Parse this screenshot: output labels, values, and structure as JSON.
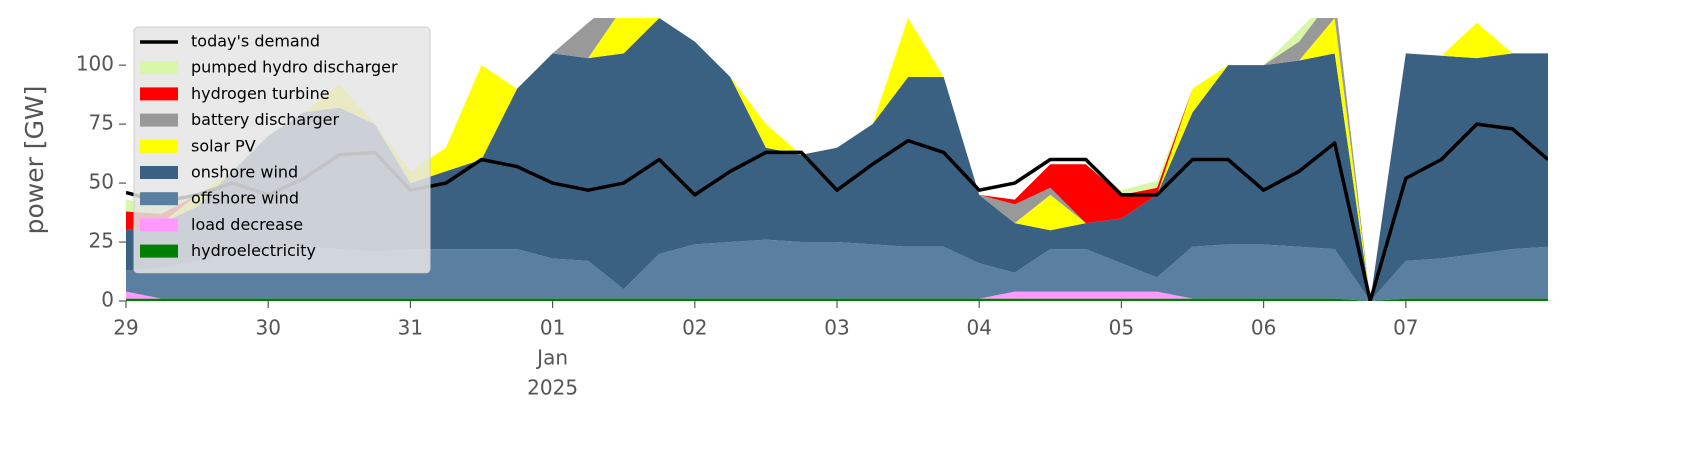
{
  "chart_data": {
    "type": "area",
    "ylabel": "power [GW]",
    "x": [
      0,
      0.25,
      0.5,
      0.75,
      1,
      1.25,
      1.5,
      1.75,
      2,
      2.25,
      2.5,
      2.75,
      3,
      3.25,
      3.5,
      3.75,
      4,
      4.25,
      4.5,
      4.75,
      5,
      5.25,
      5.5,
      5.75,
      6,
      6.25,
      6.5,
      6.75,
      7,
      7.25,
      7.5,
      7.75,
      8,
      8.25,
      8.5,
      8.75,
      9,
      9.25,
      9.5,
      9.75,
      10
    ],
    "xlim": [
      0,
      10
    ],
    "xticks": [
      {
        "value": 0,
        "label": "29"
      },
      {
        "value": 1,
        "label": "30"
      },
      {
        "value": 2,
        "label": "31"
      },
      {
        "value": 3,
        "label": "01"
      },
      {
        "value": 4,
        "label": "02"
      },
      {
        "value": 5,
        "label": "03"
      },
      {
        "value": 6,
        "label": "04"
      },
      {
        "value": 7,
        "label": "05"
      },
      {
        "value": 8,
        "label": "06"
      },
      {
        "value": 9,
        "label": "07"
      }
    ],
    "xtick_month": "Jan",
    "xtick_year": "2025",
    "ylim": [
      0,
      120
    ],
    "yticks": [
      0,
      25,
      50,
      75,
      100
    ],
    "legend": "upper left",
    "series": [
      {
        "name": "hydroelectricity",
        "color": "#008000",
        "values": [
          1,
          1,
          1,
          1,
          1,
          1,
          1,
          1,
          1,
          1,
          1,
          1,
          1,
          1,
          1,
          1,
          1,
          1,
          1,
          1,
          1,
          1,
          1,
          1,
          1,
          1,
          1,
          1,
          1,
          1,
          1,
          1,
          1,
          1,
          1,
          0,
          1,
          1,
          1,
          1,
          1
        ]
      },
      {
        "name": "load decrease",
        "color": "#ff99ff",
        "values": [
          3,
          0,
          0,
          0,
          0,
          0,
          0,
          0,
          0,
          0,
          0,
          0,
          0,
          0,
          0,
          0,
          0,
          0,
          0,
          0,
          0,
          0,
          0,
          0,
          0,
          3,
          3,
          3,
          3,
          3,
          0,
          0,
          0,
          0,
          0,
          0,
          0,
          0,
          0,
          0,
          0
        ]
      },
      {
        "name": "offshore wind",
        "color": "#5b7fa1",
        "values": [
          9,
          13,
          16,
          19,
          21,
          22,
          21,
          20,
          21,
          21,
          21,
          21,
          17,
          16,
          4,
          19,
          23,
          24,
          25,
          24,
          24,
          23,
          22,
          22,
          15,
          8,
          18,
          18,
          12,
          6,
          22,
          23,
          23,
          22,
          21,
          0,
          16,
          17,
          19,
          21,
          22
        ]
      },
      {
        "name": "onshore wind",
        "color": "#3b6182",
        "values": [
          17,
          19,
          23,
          35,
          48,
          57,
          60,
          54,
          28,
          33,
          38,
          68,
          87,
          86,
          100,
          100,
          86,
          70,
          39,
          37,
          40,
          51,
          72,
          72,
          29,
          21,
          8,
          11,
          19,
          35,
          57,
          76,
          76,
          79,
          83,
          0,
          88,
          86,
          83,
          83,
          82
        ]
      },
      {
        "name": "solar PV",
        "color": "#ffff00",
        "values": [
          0,
          0,
          5,
          0,
          0,
          0,
          10,
          0,
          5,
          10,
          40,
          0,
          0,
          0,
          20,
          0,
          0,
          0,
          10,
          0,
          0,
          0,
          25,
          0,
          0,
          0,
          15,
          0,
          0,
          0,
          10,
          0,
          0,
          0,
          15,
          0,
          0,
          0,
          15,
          0,
          0
        ]
      },
      {
        "name": "battery discharger",
        "color": "#999999",
        "values": [
          0,
          0,
          0,
          0,
          0,
          0,
          0,
          0,
          0,
          0,
          0,
          0,
          0,
          15,
          5,
          0,
          0,
          0,
          0,
          0,
          0,
          0,
          0,
          0,
          0,
          8,
          3,
          0,
          0,
          0,
          0,
          0,
          0,
          8,
          10,
          0,
          0,
          0,
          0,
          0,
          0
        ]
      },
      {
        "name": "hydrogen turbine",
        "color": "#ff0000",
        "values": [
          8,
          4,
          0,
          0,
          0,
          0,
          0,
          0,
          0,
          0,
          0,
          0,
          0,
          0,
          0,
          0,
          0,
          0,
          0,
          0,
          0,
          0,
          0,
          0,
          0,
          2,
          10,
          25,
          10,
          3,
          0,
          0,
          0,
          0,
          0,
          0,
          0,
          0,
          0,
          0,
          0
        ]
      },
      {
        "name": "pumped hydro discharger",
        "color": "#d8f7a8",
        "values": [
          5,
          3,
          0,
          0,
          0,
          0,
          0,
          0,
          0,
          0,
          0,
          0,
          0,
          0,
          0,
          0,
          0,
          0,
          0,
          0,
          0,
          0,
          0,
          0,
          0,
          0,
          0,
          0,
          2,
          3,
          0,
          0,
          0,
          5,
          0,
          0,
          0,
          0,
          0,
          0,
          0
        ]
      }
    ],
    "line": {
      "name": "today's demand",
      "color": "#000000",
      "values": [
        46,
        42,
        45,
        50,
        45,
        52,
        62,
        63,
        47,
        50,
        60,
        57,
        50,
        47,
        50,
        60,
        45,
        55,
        63,
        63,
        47,
        58,
        68,
        63,
        47,
        50,
        60,
        60,
        45,
        45,
        60,
        60,
        47,
        55,
        67,
        0,
        52,
        60,
        75,
        73,
        60
      ]
    }
  }
}
